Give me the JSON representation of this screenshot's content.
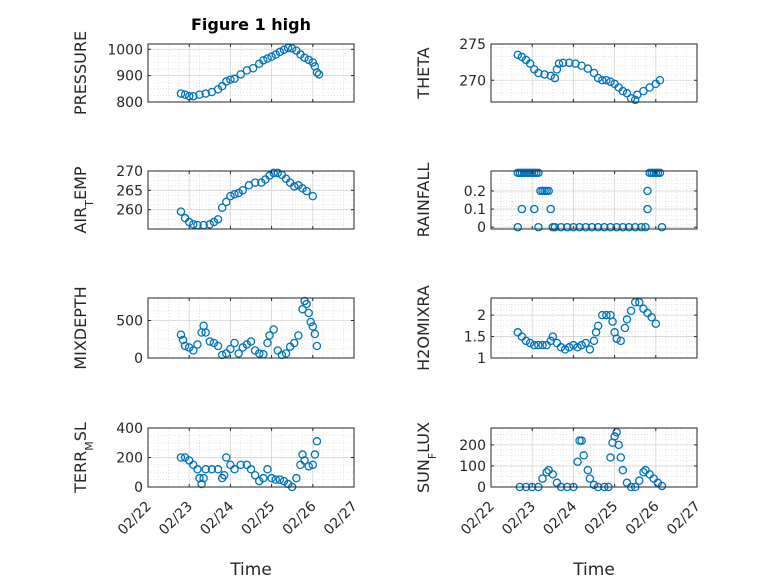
{
  "figure": {
    "title": "Figure 1 high",
    "marker_color": "#0072BD",
    "grid_color": "#cccccc",
    "axes_color": "#262626"
  },
  "chart_data": [
    {
      "id": "pressure",
      "type": "scatter",
      "title": "Figure 1 high",
      "ylabel": "PRESSURE",
      "ylabel_parts": [
        {
          "t": "PRESSURE"
        }
      ],
      "xlabel": "",
      "ylim": [
        800,
        1020
      ],
      "yticks": [
        800,
        900,
        1000
      ],
      "xlim": [
        "02/22",
        "02/27"
      ],
      "xticks": [
        "02/22",
        "02/23",
        "02/24",
        "02/25",
        "02/26",
        "02/27"
      ],
      "points": [
        [
          0.8,
          832
        ],
        [
          0.9,
          828
        ],
        [
          1.0,
          822
        ],
        [
          1.1,
          822
        ],
        [
          1.25,
          828
        ],
        [
          1.4,
          832
        ],
        [
          1.55,
          838
        ],
        [
          1.7,
          848
        ],
        [
          1.8,
          860
        ],
        [
          1.9,
          878
        ],
        [
          2.0,
          885
        ],
        [
          2.1,
          888
        ],
        [
          2.25,
          905
        ],
        [
          2.4,
          920
        ],
        [
          2.55,
          928
        ],
        [
          2.7,
          945
        ],
        [
          2.8,
          958
        ],
        [
          2.9,
          965
        ],
        [
          3.0,
          972
        ],
        [
          3.1,
          980
        ],
        [
          3.2,
          990
        ],
        [
          3.3,
          998
        ],
        [
          3.4,
          1005
        ],
        [
          3.5,
          1003
        ],
        [
          3.6,
          995
        ],
        [
          3.7,
          980
        ],
        [
          3.8,
          968
        ],
        [
          3.9,
          960
        ],
        [
          4.0,
          950
        ],
        [
          4.05,
          935
        ],
        [
          4.1,
          912
        ],
        [
          4.15,
          905
        ]
      ]
    },
    {
      "id": "theta",
      "type": "scatter",
      "ylabel": "THETA",
      "ylabel_parts": [
        {
          "t": "THETA"
        }
      ],
      "xlabel": "",
      "ylim": [
        267,
        275
      ],
      "yticks": [
        270,
        275
      ],
      "xlim": [
        "02/22",
        "02/27"
      ],
      "xticks": [
        "02/22",
        "02/23",
        "02/24",
        "02/25",
        "02/26",
        "02/27"
      ],
      "points": [
        [
          0.65,
          273.5
        ],
        [
          0.75,
          273.2
        ],
        [
          0.85,
          272.8
        ],
        [
          0.95,
          272.3
        ],
        [
          1.05,
          271.5
        ],
        [
          1.15,
          271.0
        ],
        [
          1.3,
          270.8
        ],
        [
          1.45,
          270.6
        ],
        [
          1.55,
          270.3
        ],
        [
          1.6,
          271.5
        ],
        [
          1.65,
          272.3
        ],
        [
          1.75,
          272.4
        ],
        [
          1.9,
          272.4
        ],
        [
          2.05,
          272.3
        ],
        [
          2.2,
          272.0
        ],
        [
          2.35,
          271.6
        ],
        [
          2.5,
          271.0
        ],
        [
          2.6,
          270.3
        ],
        [
          2.7,
          270.0
        ],
        [
          2.8,
          270.0
        ],
        [
          2.9,
          269.8
        ],
        [
          3.0,
          269.5
        ],
        [
          3.1,
          269.0
        ],
        [
          3.2,
          268.5
        ],
        [
          3.3,
          268.2
        ],
        [
          3.4,
          267.5
        ],
        [
          3.5,
          267.3
        ],
        [
          3.55,
          268.0
        ],
        [
          3.7,
          268.5
        ],
        [
          3.85,
          269.0
        ],
        [
          4.0,
          269.5
        ],
        [
          4.1,
          270.0
        ]
      ]
    },
    {
      "id": "air_temp",
      "type": "scatter",
      "ylabel": "AIR_TEMP",
      "ylabel_parts": [
        {
          "t": "AIR"
        },
        {
          "t": "T",
          "sub": true
        },
        {
          "t": "EMP"
        }
      ],
      "xlabel": "",
      "ylim": [
        255,
        270
      ],
      "yticks": [
        260,
        265,
        270
      ],
      "xlim": [
        "02/22",
        "02/27"
      ],
      "xticks": [
        "02/22",
        "02/23",
        "02/24",
        "02/25",
        "02/26",
        "02/27"
      ],
      "points": [
        [
          0.8,
          259.5
        ],
        [
          0.9,
          257.8
        ],
        [
          1.0,
          256.8
        ],
        [
          1.1,
          256.2
        ],
        [
          1.2,
          256.0
        ],
        [
          1.35,
          256.0
        ],
        [
          1.5,
          256.2
        ],
        [
          1.6,
          256.8
        ],
        [
          1.7,
          257.5
        ],
        [
          1.8,
          260.5
        ],
        [
          1.9,
          262.0
        ],
        [
          2.0,
          263.5
        ],
        [
          2.1,
          264.0
        ],
        [
          2.2,
          264.3
        ],
        [
          2.3,
          265.0
        ],
        [
          2.45,
          266.3
        ],
        [
          2.6,
          267.0
        ],
        [
          2.75,
          267.0
        ],
        [
          2.85,
          267.8
        ],
        [
          2.95,
          268.8
        ],
        [
          3.05,
          269.5
        ],
        [
          3.15,
          269.5
        ],
        [
          3.25,
          269.0
        ],
        [
          3.35,
          268.0
        ],
        [
          3.45,
          267.0
        ],
        [
          3.55,
          266.0
        ],
        [
          3.65,
          266.3
        ],
        [
          3.75,
          265.5
        ],
        [
          3.85,
          264.8
        ],
        [
          4.0,
          263.5
        ]
      ]
    },
    {
      "id": "rainfall",
      "type": "scatter",
      "ylabel": "RAINFALL",
      "ylabel_parts": [
        {
          "t": "RAINFALL"
        }
      ],
      "xlabel": "",
      "ylim": [
        -0.01,
        0.31
      ],
      "yticks": [
        0,
        0.1,
        0.2
      ],
      "ytick_labels": [
        "0",
        "0.1",
        "0.2"
      ],
      "xlim": [
        "02/22",
        "02/27"
      ],
      "xticks": [
        "02/22",
        "02/23",
        "02/24",
        "02/25",
        "02/26",
        "02/27"
      ],
      "points": [
        [
          0.65,
          0.3
        ],
        [
          0.7,
          0.3
        ],
        [
          0.75,
          0.3
        ],
        [
          0.8,
          0.3
        ],
        [
          0.85,
          0.3
        ],
        [
          0.9,
          0.3
        ],
        [
          0.95,
          0.3
        ],
        [
          1.0,
          0.3
        ],
        [
          1.05,
          0.3
        ],
        [
          1.1,
          0.3
        ],
        [
          1.15,
          0.3
        ],
        [
          0.65,
          0.0
        ],
        [
          0.75,
          0.1
        ],
        [
          1.05,
          0.1
        ],
        [
          1.15,
          0.0
        ],
        [
          1.2,
          0.2
        ],
        [
          1.25,
          0.2
        ],
        [
          1.3,
          0.2
        ],
        [
          1.35,
          0.2
        ],
        [
          1.4,
          0.2
        ],
        [
          1.45,
          0.1
        ],
        [
          1.5,
          0.0
        ],
        [
          1.55,
          0.0
        ],
        [
          1.7,
          0.0
        ],
        [
          1.85,
          0.0
        ],
        [
          2.0,
          0.0
        ],
        [
          2.15,
          0.0
        ],
        [
          2.3,
          0.0
        ],
        [
          2.45,
          0.0
        ],
        [
          2.6,
          0.0
        ],
        [
          2.75,
          0.0
        ],
        [
          2.9,
          0.0
        ],
        [
          3.05,
          0.0
        ],
        [
          3.2,
          0.0
        ],
        [
          3.35,
          0.0
        ],
        [
          3.5,
          0.0
        ],
        [
          3.65,
          0.0
        ],
        [
          3.75,
          0.0
        ],
        [
          3.8,
          0.1
        ],
        [
          3.8,
          0.2
        ],
        [
          3.85,
          0.3
        ],
        [
          3.9,
          0.3
        ],
        [
          3.95,
          0.3
        ],
        [
          4.0,
          0.3
        ],
        [
          4.05,
          0.3
        ],
        [
          4.1,
          0.3
        ],
        [
          4.15,
          0.0
        ]
      ]
    },
    {
      "id": "mixdepth",
      "type": "scatter",
      "ylabel": "MIXDEPTH",
      "ylabel_parts": [
        {
          "t": "MIXDEPTH"
        }
      ],
      "xlabel": "",
      "ylim": [
        0,
        800
      ],
      "yticks": [
        0,
        500
      ],
      "xlim": [
        "02/22",
        "02/27"
      ],
      "xticks": [
        "02/22",
        "02/23",
        "02/24",
        "02/25",
        "02/26",
        "02/27"
      ],
      "points": [
        [
          0.8,
          310
        ],
        [
          0.85,
          240
        ],
        [
          0.9,
          160
        ],
        [
          1.0,
          140
        ],
        [
          1.1,
          100
        ],
        [
          1.2,
          180
        ],
        [
          1.3,
          340
        ],
        [
          1.35,
          430
        ],
        [
          1.4,
          340
        ],
        [
          1.5,
          220
        ],
        [
          1.6,
          200
        ],
        [
          1.7,
          160
        ],
        [
          1.8,
          40
        ],
        [
          1.9,
          60
        ],
        [
          2.0,
          120
        ],
        [
          2.1,
          200
        ],
        [
          2.2,
          60
        ],
        [
          2.3,
          140
        ],
        [
          2.4,
          180
        ],
        [
          2.5,
          220
        ],
        [
          2.6,
          100
        ],
        [
          2.7,
          60
        ],
        [
          2.8,
          50
        ],
        [
          2.9,
          200
        ],
        [
          2.95,
          300
        ],
        [
          3.05,
          380
        ],
        [
          3.15,
          100
        ],
        [
          3.25,
          40
        ],
        [
          3.35,
          60
        ],
        [
          3.45,
          150
        ],
        [
          3.55,
          200
        ],
        [
          3.65,
          300
        ],
        [
          3.75,
          650
        ],
        [
          3.8,
          760
        ],
        [
          3.85,
          720
        ],
        [
          3.9,
          600
        ],
        [
          3.95,
          480
        ],
        [
          4.0,
          420
        ],
        [
          4.05,
          320
        ],
        [
          4.1,
          160
        ]
      ]
    },
    {
      "id": "h2omixra",
      "type": "scatter",
      "ylabel": "H2OMIXRA",
      "ylabel_parts": [
        {
          "t": "H2OMIXRA"
        }
      ],
      "xlabel": "",
      "ylim": [
        1,
        2.4
      ],
      "yticks": [
        1,
        1.5,
        2
      ],
      "xlim": [
        "02/22",
        "02/27"
      ],
      "xticks": [
        "02/22",
        "02/23",
        "02/24",
        "02/25",
        "02/26",
        "02/27"
      ],
      "points": [
        [
          0.65,
          1.6
        ],
        [
          0.75,
          1.5
        ],
        [
          0.85,
          1.4
        ],
        [
          0.95,
          1.35
        ],
        [
          1.05,
          1.3
        ],
        [
          1.15,
          1.3
        ],
        [
          1.25,
          1.3
        ],
        [
          1.35,
          1.3
        ],
        [
          1.45,
          1.4
        ],
        [
          1.5,
          1.5
        ],
        [
          1.6,
          1.35
        ],
        [
          1.7,
          1.25
        ],
        [
          1.8,
          1.2
        ],
        [
          1.9,
          1.25
        ],
        [
          2.0,
          1.3
        ],
        [
          2.1,
          1.25
        ],
        [
          2.2,
          1.3
        ],
        [
          2.3,
          1.35
        ],
        [
          2.4,
          1.2
        ],
        [
          2.5,
          1.4
        ],
        [
          2.55,
          1.6
        ],
        [
          2.6,
          1.75
        ],
        [
          2.7,
          2.0
        ],
        [
          2.8,
          2.0
        ],
        [
          2.9,
          2.0
        ],
        [
          2.95,
          1.85
        ],
        [
          3.0,
          1.6
        ],
        [
          3.05,
          1.45
        ],
        [
          3.15,
          1.4
        ],
        [
          3.25,
          1.7
        ],
        [
          3.3,
          1.9
        ],
        [
          3.4,
          2.1
        ],
        [
          3.5,
          2.3
        ],
        [
          3.6,
          2.3
        ],
        [
          3.7,
          2.15
        ],
        [
          3.8,
          2.05
        ],
        [
          3.9,
          1.95
        ],
        [
          4.0,
          1.8
        ]
      ]
    },
    {
      "id": "terr_msl",
      "type": "scatter",
      "ylabel": "TERR_MSL",
      "ylabel_parts": [
        {
          "t": "TERR"
        },
        {
          "t": "M",
          "sub": true
        },
        {
          "t": "SL"
        }
      ],
      "xlabel": "Time",
      "ylim": [
        0,
        400
      ],
      "yticks": [
        0,
        200,
        400
      ],
      "xlim": [
        "02/22",
        "02/27"
      ],
      "xticks": [
        "02/22",
        "02/23",
        "02/24",
        "02/25",
        "02/26",
        "02/27"
      ],
      "points": [
        [
          0.8,
          200
        ],
        [
          0.9,
          200
        ],
        [
          1.0,
          180
        ],
        [
          1.1,
          150
        ],
        [
          1.2,
          120
        ],
        [
          1.25,
          60
        ],
        [
          1.3,
          20
        ],
        [
          1.35,
          60
        ],
        [
          1.4,
          120
        ],
        [
          1.55,
          120
        ],
        [
          1.7,
          120
        ],
        [
          1.8,
          60
        ],
        [
          1.85,
          80
        ],
        [
          1.9,
          200
        ],
        [
          2.0,
          150
        ],
        [
          2.1,
          120
        ],
        [
          2.25,
          150
        ],
        [
          2.4,
          150
        ],
        [
          2.5,
          120
        ],
        [
          2.6,
          80
        ],
        [
          2.7,
          40
        ],
        [
          2.8,
          60
        ],
        [
          2.9,
          120
        ],
        [
          3.0,
          60
        ],
        [
          3.1,
          50
        ],
        [
          3.2,
          50
        ],
        [
          3.3,
          40
        ],
        [
          3.4,
          20
        ],
        [
          3.5,
          0
        ],
        [
          3.6,
          60
        ],
        [
          3.7,
          150
        ],
        [
          3.75,
          220
        ],
        [
          3.8,
          180
        ],
        [
          3.9,
          140
        ],
        [
          4.0,
          150
        ],
        [
          4.05,
          220
        ],
        [
          4.1,
          310
        ]
      ]
    },
    {
      "id": "sun_flux",
      "type": "scatter",
      "ylabel": "SUN_FLUX",
      "ylabel_parts": [
        {
          "t": "SUN"
        },
        {
          "t": "F",
          "sub": true
        },
        {
          "t": "LUX"
        }
      ],
      "xlabel": "Time",
      "ylim": [
        0,
        280
      ],
      "yticks": [
        0,
        100,
        200
      ],
      "xlim": [
        "02/22",
        "02/27"
      ],
      "xticks": [
        "02/22",
        "02/23",
        "02/24",
        "02/25",
        "02/26",
        "02/27"
      ],
      "points": [
        [
          0.7,
          0
        ],
        [
          0.85,
          0
        ],
        [
          1.0,
          0
        ],
        [
          1.15,
          0
        ],
        [
          1.25,
          40
        ],
        [
          1.35,
          70
        ],
        [
          1.4,
          80
        ],
        [
          1.5,
          60
        ],
        [
          1.6,
          20
        ],
        [
          1.7,
          0
        ],
        [
          1.85,
          0
        ],
        [
          2.0,
          0
        ],
        [
          2.1,
          120
        ],
        [
          2.15,
          220
        ],
        [
          2.2,
          220
        ],
        [
          2.25,
          150
        ],
        [
          2.35,
          80
        ],
        [
          2.4,
          40
        ],
        [
          2.5,
          10
        ],
        [
          2.6,
          0
        ],
        [
          2.75,
          0
        ],
        [
          2.85,
          0
        ],
        [
          2.9,
          140
        ],
        [
          2.95,
          210
        ],
        [
          3.0,
          240
        ],
        [
          3.05,
          260
        ],
        [
          3.1,
          200
        ],
        [
          3.15,
          140
        ],
        [
          3.2,
          80
        ],
        [
          3.3,
          20
        ],
        [
          3.4,
          0
        ],
        [
          3.5,
          0
        ],
        [
          3.6,
          30
        ],
        [
          3.7,
          70
        ],
        [
          3.75,
          80
        ],
        [
          3.85,
          60
        ],
        [
          3.95,
          40
        ],
        [
          4.05,
          20
        ],
        [
          4.15,
          5
        ]
      ]
    }
  ]
}
